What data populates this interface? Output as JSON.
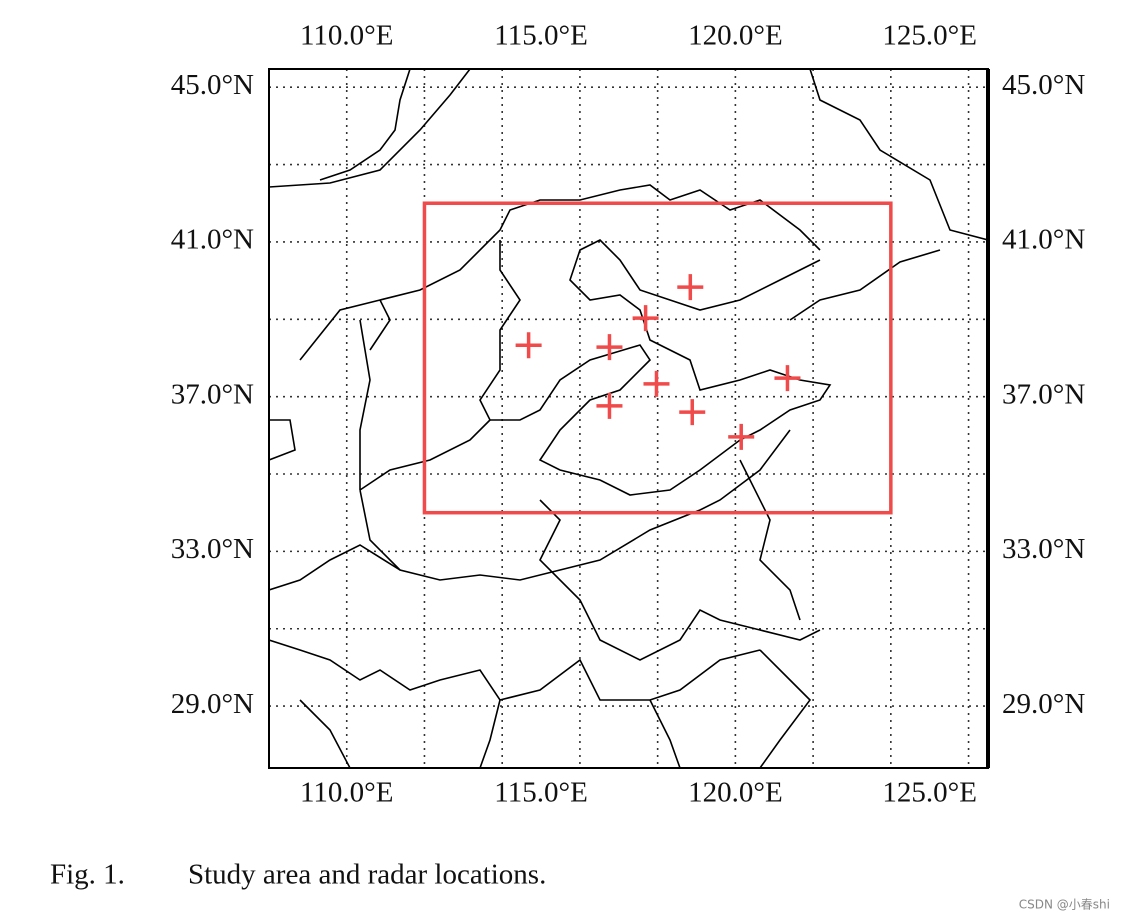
{
  "chart_data": {
    "type": "scatter",
    "caption_number": "Fig. 1.",
    "caption": "Study area and radar locations.",
    "watermark": "CSDN @小春shi",
    "xlim": [
      108.0,
      126.5
    ],
    "ylim": [
      27.4,
      45.47
    ],
    "xticks": [
      {
        "value": 110,
        "label": "110.0°E"
      },
      {
        "value": 115,
        "label": "115.0°E"
      },
      {
        "value": 120,
        "label": "120.0°E"
      },
      {
        "value": 125,
        "label": "125.0°E"
      }
    ],
    "yticks": [
      {
        "value": 45,
        "label": "45.0°N"
      },
      {
        "value": 41,
        "label": "41.0°N"
      },
      {
        "value": 37,
        "label": "37.0°N"
      },
      {
        "value": 33,
        "label": "33.0°N"
      },
      {
        "value": 29,
        "label": "29.0°N"
      }
    ],
    "xgrid": [
      110,
      112,
      114,
      116,
      118,
      120,
      122,
      124,
      126
    ],
    "ygrid": [
      29,
      31,
      33,
      35,
      37,
      39,
      41,
      43,
      45
    ],
    "grid": true,
    "color": "#f04a4a",
    "x": [
      114.68,
      116.76,
      117.69,
      118.84,
      117.97,
      116.76,
      118.89,
      120.15,
      121.34
    ],
    "values": [
      38.33,
      38.28,
      39.03,
      39.83,
      37.33,
      36.76,
      36.6,
      35.96,
      37.48
    ],
    "study_area": {
      "xlim": [
        112,
        124
      ],
      "ylim": [
        34,
        42
      ]
    }
  }
}
